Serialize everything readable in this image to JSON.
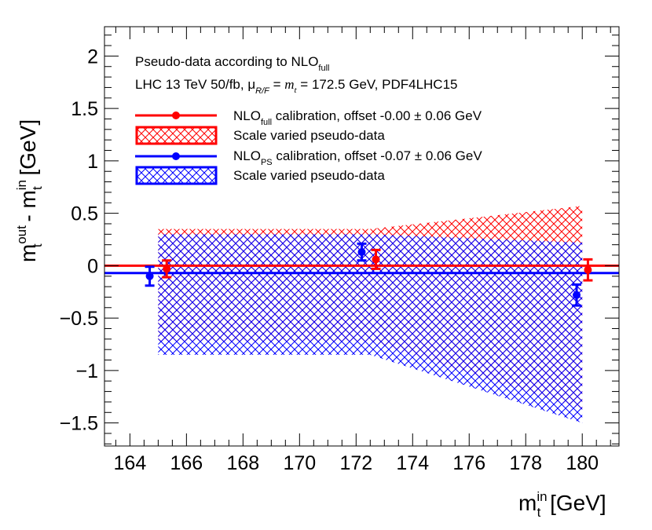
{
  "chart_data": {
    "type": "scatter",
    "title": "",
    "xlabel": "m_t^in [GeV]",
    "ylabel": "m_t^out - m_t^in [GeV]",
    "xlim": [
      163.1,
      181.3
    ],
    "ylim": [
      -1.72,
      2.28
    ],
    "xticks": [
      164,
      166,
      168,
      170,
      172,
      174,
      176,
      178,
      180
    ],
    "yticks": [
      -1.5,
      -1,
      -0.5,
      0,
      0.5,
      1,
      1.5,
      2
    ],
    "xtick_labels": [
      "164",
      "166",
      "168",
      "170",
      "172",
      "174",
      "176",
      "178",
      "180"
    ],
    "ytick_labels": [
      "−1.5",
      "−1",
      "−0.5",
      "0",
      "0.5",
      "1",
      "1.5",
      "2"
    ],
    "axis_titles": {
      "x": {
        "base": "m",
        "sup": "in",
        "sub": "t",
        "unit": " [GeV]"
      },
      "y": {
        "m1": "m",
        "sup1": "out",
        "sub1": "t",
        "mid": " - m",
        "sup2": "in",
        "sub2": "t",
        "unit": " [GeV]"
      }
    },
    "annotations": {
      "line1": {
        "text": "Pseudo-data according to NLO",
        "sub": "full"
      },
      "line2": {
        "pre": "LHC 13 TeV 50/fb, μ",
        "sub": "R/F",
        "mid": " = ",
        "mt": "m",
        "mt_sub": "t",
        "post": " = 172.5 GeV, PDF4LHC15"
      }
    },
    "legend": {
      "position": "top-left",
      "entries": [
        {
          "name": "NLO",
          "sub": "full",
          "text": " calibration, offset -0.00 ± 0.06 GeV",
          "kind": "marker",
          "color": "#ff0000"
        },
        {
          "name": "Scale varied pseudo-data",
          "kind": "band",
          "color": "#ff0000"
        },
        {
          "name": "NLO",
          "sub": "PS",
          "text": " calibration, offset -0.07 ± 0.06 GeV",
          "kind": "marker",
          "color": "#0000ff"
        },
        {
          "name": "Scale varied pseudo-data",
          "kind": "band",
          "color": "#0000ff"
        }
      ]
    },
    "series": [
      {
        "name": "NLO_full calibration",
        "color": "#ff0000",
        "offset": -0.0,
        "points": [
          {
            "x": 165.3,
            "y": -0.03,
            "err": 0.08
          },
          {
            "x": 172.7,
            "y": 0.06,
            "err": 0.09
          },
          {
            "x": 180.2,
            "y": -0.04,
            "err": 0.1
          }
        ],
        "band": {
          "x": [
            165,
            172.5,
            180
          ],
          "upper": [
            0.35,
            0.35,
            0.57
          ],
          "lower": [
            -0.72,
            -0.72,
            -1.37
          ]
        }
      },
      {
        "name": "NLO_PS calibration",
        "color": "#0000ff",
        "offset": -0.07,
        "points": [
          {
            "x": 164.7,
            "y": -0.1,
            "err": 0.09
          },
          {
            "x": 172.2,
            "y": 0.13,
            "err": 0.08
          },
          {
            "x": 179.8,
            "y": -0.28,
            "err": 0.1
          }
        ],
        "band": {
          "x": [
            165,
            172.5,
            180
          ],
          "upper": [
            0.3,
            0.3,
            0.22
          ],
          "lower": [
            -0.85,
            -0.85,
            -1.5
          ]
        }
      }
    ]
  }
}
